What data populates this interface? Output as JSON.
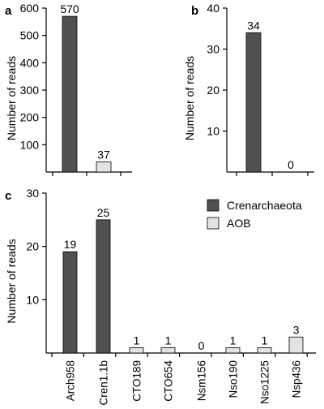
{
  "colors": {
    "crenarchaeota": "#505050",
    "aob": "#e3e3e3"
  },
  "legend": {
    "crenarchaeota": "Crenarchaeota",
    "aob": "AOB"
  },
  "chart_data": [
    {
      "panel": "a",
      "type": "bar",
      "ylabel": "Number of reads",
      "ylim": [
        0,
        600
      ],
      "yticks": [
        100,
        200,
        300,
        400,
        500,
        600
      ],
      "categories": [
        "",
        ""
      ],
      "values": [
        570,
        37
      ],
      "groups": [
        "crenarchaeota",
        "aob"
      ],
      "data_labels": [
        "570",
        "37"
      ]
    },
    {
      "panel": "b",
      "type": "bar",
      "ylabel": "Number of reads",
      "ylim": [
        0,
        40
      ],
      "yticks": [
        10,
        20,
        30,
        40
      ],
      "categories": [
        "",
        ""
      ],
      "values": [
        34,
        0
      ],
      "groups": [
        "crenarchaeota",
        "aob"
      ],
      "data_labels": [
        "34",
        "0"
      ]
    },
    {
      "panel": "c",
      "type": "bar",
      "ylabel": "Number of reads",
      "ylim": [
        0,
        30
      ],
      "yticks": [
        10,
        20,
        30
      ],
      "categories": [
        "Arch958",
        "Cren1.1b",
        "CTO189",
        "CTO654",
        "Nsm156",
        "Nso190",
        "Nso1225",
        "Nsp436"
      ],
      "values": [
        19,
        25,
        1,
        1,
        0,
        1,
        1,
        3
      ],
      "groups": [
        "crenarchaeota",
        "crenarchaeota",
        "aob",
        "aob",
        "aob",
        "aob",
        "aob",
        "aob"
      ],
      "data_labels": [
        "19",
        "25",
        "1",
        "1",
        "0",
        "1",
        "1",
        "3"
      ],
      "legend": [
        "Crenarchaeota",
        "AOB"
      ]
    }
  ]
}
